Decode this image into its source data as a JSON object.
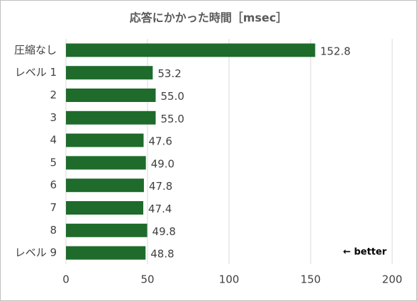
{
  "chart_data": {
    "type": "bar",
    "orientation": "horizontal",
    "title": "応答にかかった時間［msec］",
    "categories": [
      "圧縮なし",
      "レベル 1",
      "2",
      "3",
      "4",
      "5",
      "6",
      "7",
      "8",
      "レベル 9"
    ],
    "values": [
      152.8,
      53.2,
      55,
      55,
      47.6,
      49,
      47.8,
      47.4,
      49.8,
      48.8
    ],
    "value_labels": [
      "152.8",
      "53.2",
      "55.0",
      "55.0",
      "47.6",
      "49.0",
      "47.8",
      "47.4",
      "49.8",
      "48.8"
    ],
    "color": "#1f6b2b",
    "xlim": [
      0,
      200
    ],
    "xticks": [
      0,
      50,
      100,
      150,
      200
    ],
    "grid": true,
    "annotation": "← better"
  }
}
